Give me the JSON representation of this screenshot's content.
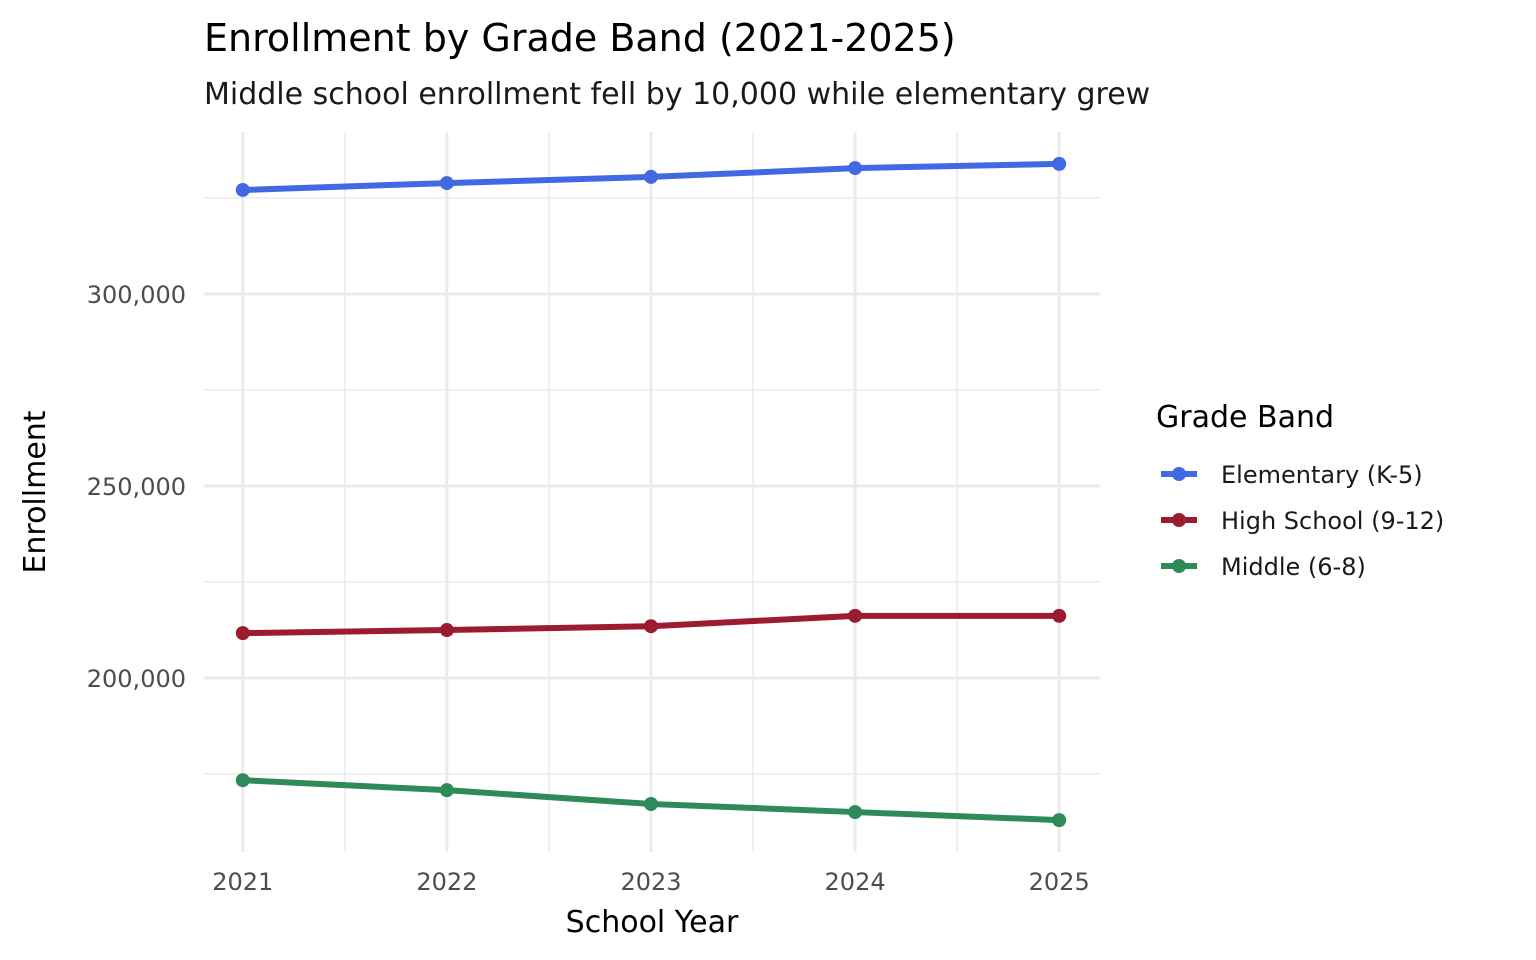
{
  "chart_data": {
    "type": "line",
    "title": "Enrollment by Grade Band (2021-2025)",
    "subtitle": "Middle school enrollment fell by 10,000 while elementary grew",
    "xlabel": "School Year",
    "ylabel": "Enrollment",
    "x": [
      2021,
      2022,
      2023,
      2024,
      2025
    ],
    "x_tick_labels": [
      "2021",
      "2022",
      "2023",
      "2024",
      "2025"
    ],
    "xlim": [
      2020.81,
      2025.2
    ],
    "y_ticks": [
      200000,
      250000,
      300000
    ],
    "y_tick_labels": [
      "200,000",
      "250,000",
      "300,000"
    ],
    "y_minor_ticks": [
      175000,
      225000,
      275000,
      325000
    ],
    "ylim": [
      154700,
      342200
    ],
    "grid": true,
    "legend": {
      "title": "Grade Band",
      "placement": "right"
    },
    "series": [
      {
        "name": "Elementary (K-5)",
        "color": "#4169E1",
        "values": [
          327100,
          328900,
          330500,
          332800,
          333900
        ]
      },
      {
        "name": "High School (9-12)",
        "color": "#9B1B30",
        "values": [
          211700,
          212500,
          213500,
          216200,
          216200
        ]
      },
      {
        "name": "Middle (6-8)",
        "color": "#2E8B57",
        "values": [
          173400,
          170800,
          167200,
          165100,
          163000
        ]
      }
    ]
  }
}
